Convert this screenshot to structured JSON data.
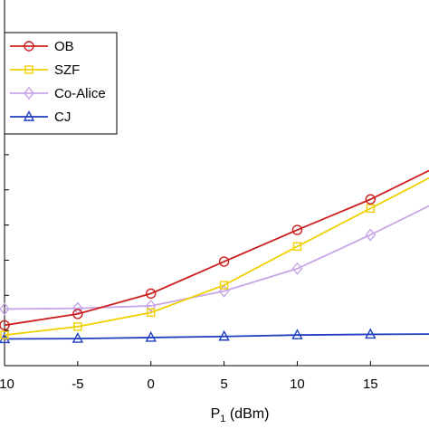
{
  "chart_data": {
    "type": "line",
    "xlabel_main": "P",
    "xlabel_sub": "1",
    "xlabel_unit": " (dBm)",
    "xlim": [
      -10,
      19
    ],
    "ylim": [
      0,
      10.4
    ],
    "x_ticks": [
      -10,
      -5,
      0,
      5,
      10,
      15
    ],
    "x_tick_labels": [
      "-10",
      "-5",
      "0",
      "5",
      "10",
      "15"
    ],
    "y_ticks": [
      1,
      2,
      3,
      4,
      5,
      6
    ],
    "grid": false,
    "legend_position": "top-left",
    "series": [
      {
        "name": "OB",
        "color": "#cc1f1f",
        "marker": "circle",
        "x": [
          -10,
          -5,
          0,
          5,
          10,
          15,
          20
        ],
        "y": [
          1.15,
          1.47,
          2.05,
          2.96,
          3.86,
          4.73,
          5.75
        ]
      },
      {
        "name": "SZF",
        "color": "#f0d000",
        "marker": "square",
        "x": [
          -10,
          -5,
          0,
          5,
          10,
          15,
          20
        ],
        "y": [
          0.87,
          1.11,
          1.51,
          2.29,
          3.39,
          4.47,
          5.55
        ]
      },
      {
        "name": "Co-Alice",
        "color": "#c8a6e8",
        "marker": "diamond",
        "x": [
          -10,
          -5,
          0,
          5,
          10,
          15,
          20
        ],
        "y": [
          1.61,
          1.63,
          1.7,
          2.12,
          2.76,
          3.72,
          4.75
        ]
      },
      {
        "name": "CJ",
        "color": "#1f3fbf",
        "marker": "triangle",
        "x": [
          -10,
          -5,
          0,
          5,
          10,
          15,
          20
        ],
        "y": [
          0.76,
          0.77,
          0.8,
          0.83,
          0.87,
          0.89,
          0.9
        ]
      }
    ]
  }
}
